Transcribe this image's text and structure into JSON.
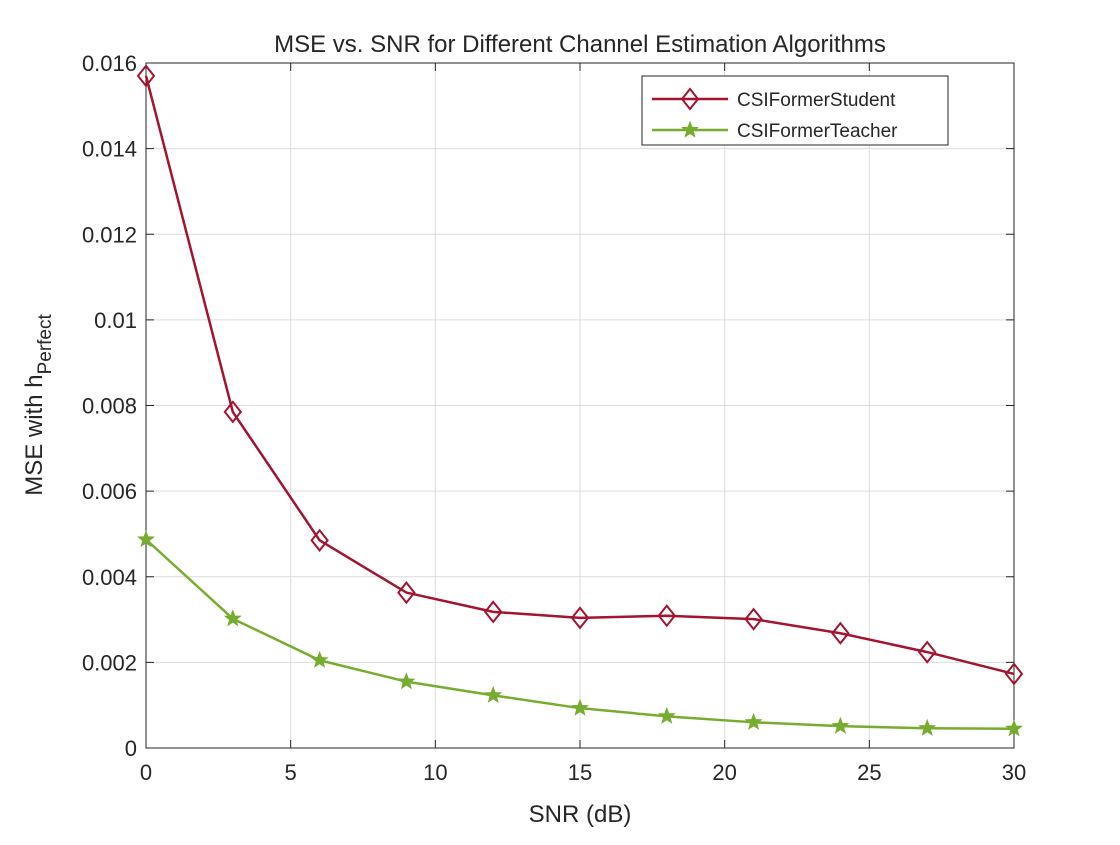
{
  "chart_data": {
    "type": "line",
    "title": "MSE vs. SNR for Different Channel Estimation Algorithms",
    "xlabel": "SNR (dB)",
    "ylabel_main": "MSE with h",
    "ylabel_sub": "Perfect",
    "xlim": [
      0,
      30
    ],
    "ylim": [
      0,
      0.016
    ],
    "xticks": [
      0,
      5,
      10,
      15,
      20,
      25,
      30
    ],
    "xtick_labels": [
      "0",
      "5",
      "10",
      "15",
      "20",
      "25",
      "30"
    ],
    "yticks": [
      0,
      0.002,
      0.004,
      0.006,
      0.008,
      0.01,
      0.012,
      0.014,
      0.016
    ],
    "ytick_labels": [
      "0",
      "0.002",
      "0.004",
      "0.006",
      "0.008",
      "0.01",
      "0.012",
      "0.014",
      "0.016"
    ],
    "grid": true,
    "legend_position": "top-right",
    "x": [
      0,
      3,
      6,
      9,
      12,
      15,
      18,
      21,
      24,
      27,
      30
    ],
    "series": [
      {
        "name": "CSIFormerStudent",
        "color": "#a2142f",
        "marker": "diamond",
        "values": [
          0.0157,
          0.00785,
          0.00485,
          0.00363,
          0.00318,
          0.00304,
          0.00309,
          0.00301,
          0.00268,
          0.00224,
          0.00173
        ]
      },
      {
        "name": "CSIFormerTeacher",
        "color": "#77ac30",
        "marker": "star",
        "values": [
          0.00487,
          0.00302,
          0.00205,
          0.00155,
          0.00123,
          0.00093,
          0.00074,
          0.0006,
          0.00051,
          0.00046,
          0.00045
        ]
      }
    ]
  }
}
